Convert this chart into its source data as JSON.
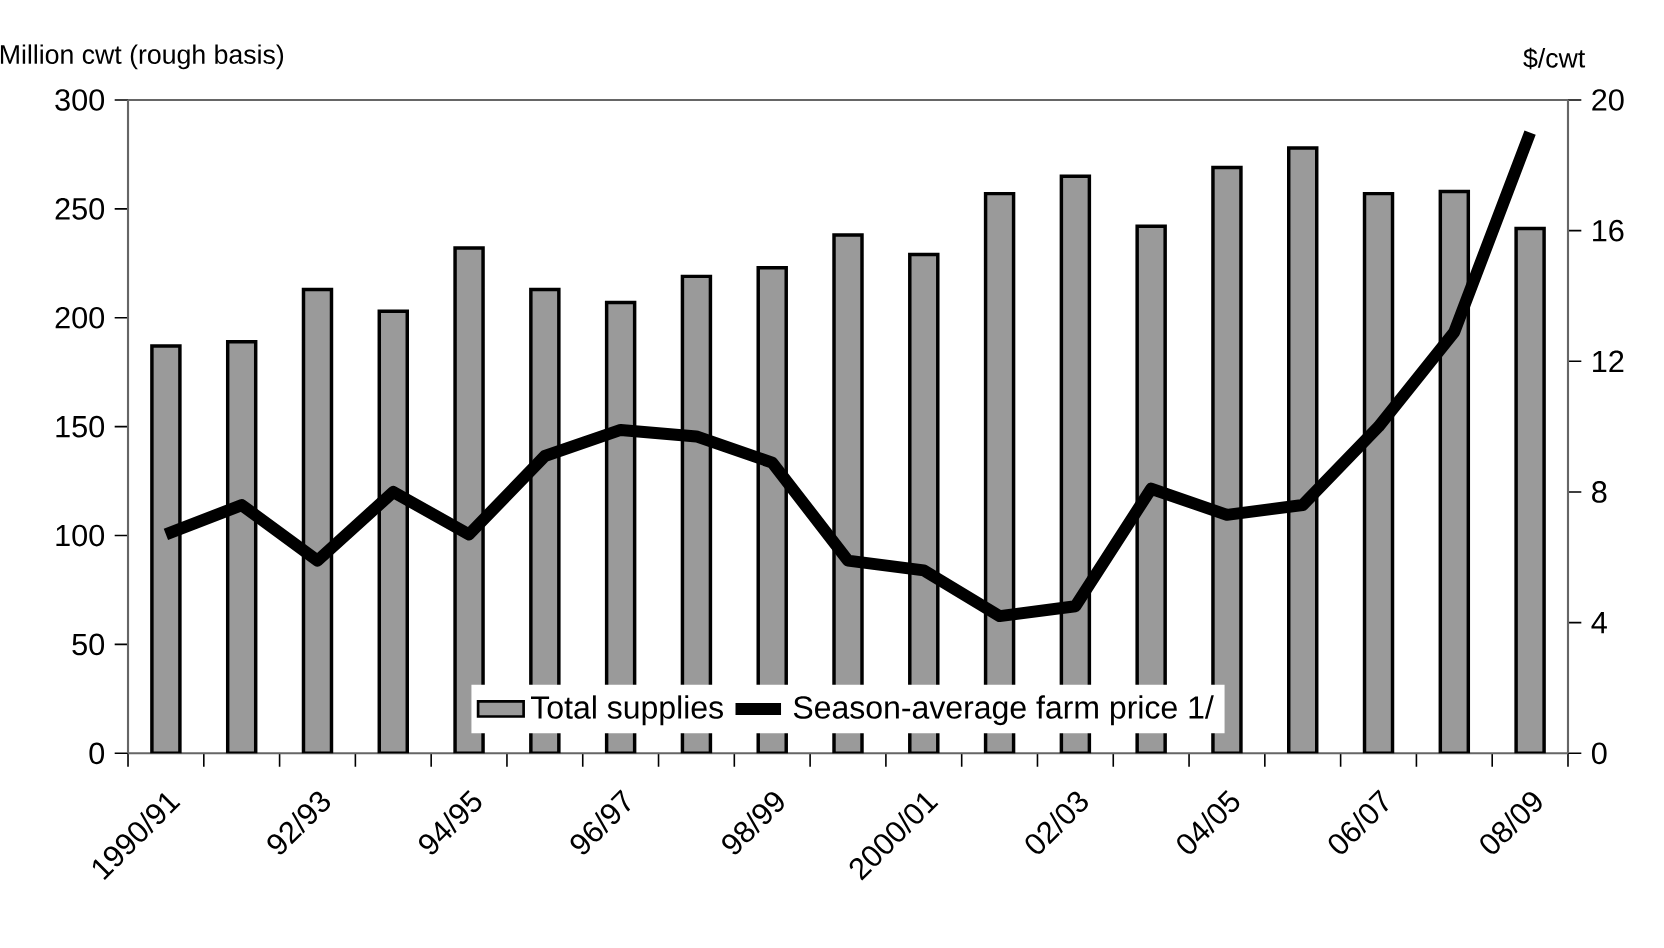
{
  "chart_data": {
    "type": "bar",
    "categories": [
      "1990/91",
      null,
      "92/93",
      null,
      "94/95",
      null,
      "96/97",
      null,
      "98/99",
      null,
      "2000/01",
      null,
      "02/03",
      null,
      "04/05",
      null,
      "06/07",
      null,
      "08/09"
    ],
    "ylabel": "Million cwt (rough basis)",
    "y2label": "$/cwt",
    "ylim": [
      0,
      300
    ],
    "yticks": [
      0,
      50,
      100,
      150,
      200,
      250,
      300
    ],
    "y2lim": [
      0,
      20
    ],
    "y2ticks": [
      0,
      4,
      8,
      12,
      16,
      20
    ],
    "legend": "bottom",
    "series": [
      {
        "name": "Total supplies",
        "color": "#9a9a9a",
        "values": [
          187,
          189,
          213,
          203,
          232,
          213,
          207,
          219,
          223,
          238,
          229,
          257,
          265,
          242,
          269,
          278,
          257,
          258,
          241
        ]
      },
      {
        "name": "Season-average farm price 1/",
        "type": "line",
        "axis": "y2",
        "color": "#000000",
        "values": [
          6.7,
          7.6,
          5.9,
          8.0,
          6.7,
          9.1,
          9.9,
          9.7,
          8.9,
          5.9,
          5.6,
          4.2,
          4.5,
          8.1,
          7.3,
          7.6,
          10.0,
          12.9,
          19.0
        ]
      }
    ]
  }
}
